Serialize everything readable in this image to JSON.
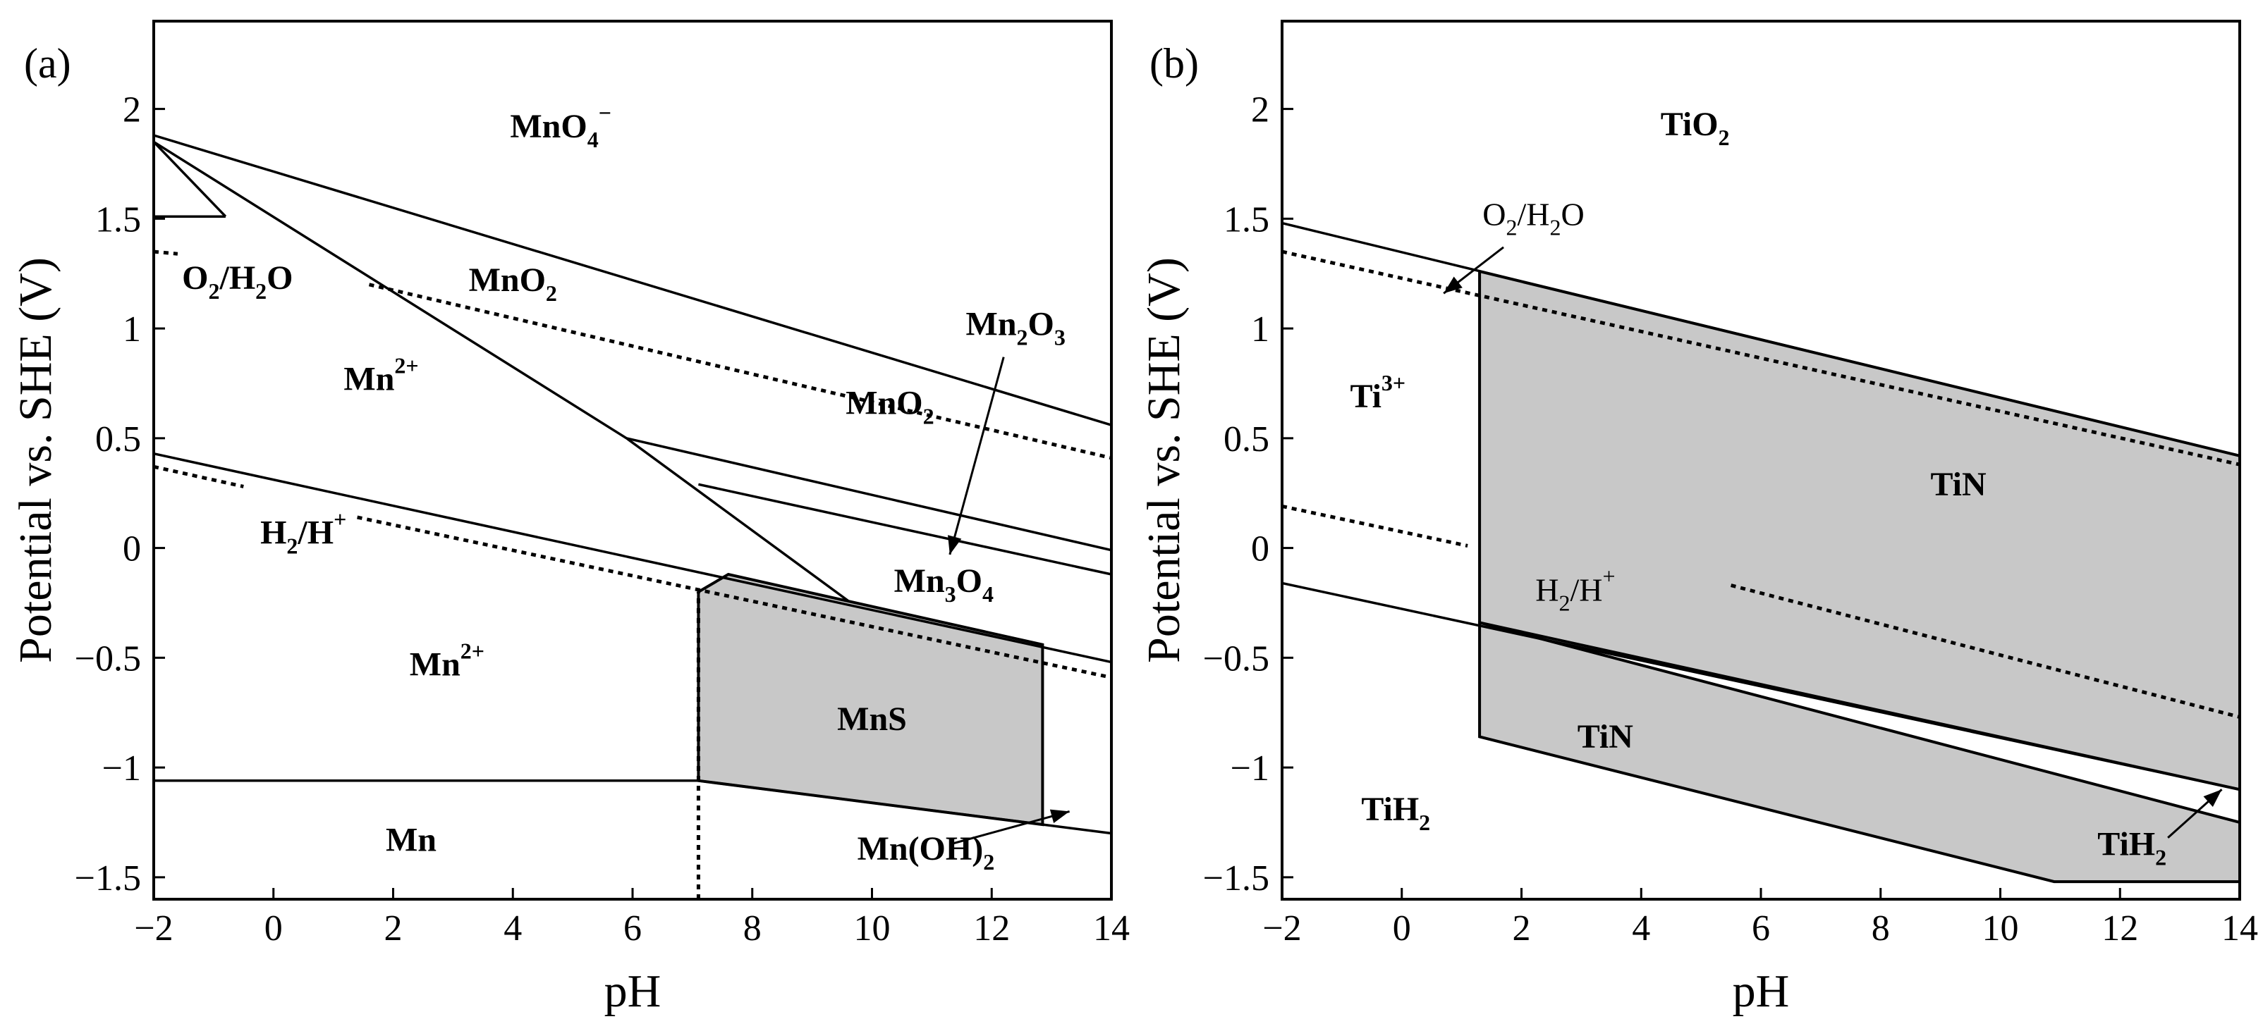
{
  "chart_data": [
    {
      "type": "line",
      "panel_label": "(a)",
      "xlabel": "pH",
      "ylabel": "Potential vs. SHE (V)",
      "xlim": [
        -2,
        14
      ],
      "ylim": [
        -1.6,
        2.4
      ],
      "xticks": [
        -2,
        0,
        2,
        4,
        6,
        8,
        10,
        12,
        14
      ],
      "yticks": [
        -1.5,
        -1,
        -0.5,
        0,
        0.5,
        1,
        1.5,
        2
      ],
      "xtick_labels": [
        "−2",
        "0",
        "2",
        "4",
        "6",
        "8",
        "10",
        "12",
        "14"
      ],
      "ytick_labels": [
        "−1.5",
        "−1",
        "−0.5",
        "0",
        "0.5",
        "1",
        "1.5",
        "2"
      ],
      "shaded_regions": [
        {
          "name": "MnS",
          "color": "#c8c8c8",
          "points": [
            [
              7.1,
              -1.06
            ],
            [
              7.1,
              -0.2
            ],
            [
              7.6,
              -0.12
            ],
            [
              12.85,
              -0.44
            ],
            [
              12.85,
              -1.26
            ]
          ]
        }
      ],
      "lines": [
        {
          "style": "solid",
          "points": [
            [
              -2,
              1.88
            ],
            [
              14,
              0.56
            ]
          ]
        },
        {
          "style": "solid",
          "points": [
            [
              -2,
              1.85
            ],
            [
              5.9,
              0.5
            ],
            [
              9.6,
              -0.24
            ]
          ]
        },
        {
          "style": "solid",
          "points": [
            [
              -2,
              1.51
            ],
            [
              -0.8,
              1.51
            ]
          ]
        },
        {
          "style": "solid",
          "points": [
            [
              -2,
              1.85
            ],
            [
              -0.8,
              1.51
            ]
          ]
        },
        {
          "style": "solid",
          "points": [
            [
              5.9,
              0.5
            ],
            [
              14,
              -0.01
            ]
          ]
        },
        {
          "style": "solid",
          "points": [
            [
              7.1,
              0.29
            ],
            [
              14,
              -0.12
            ]
          ]
        },
        {
          "style": "solid",
          "points": [
            [
              -2,
              0.43
            ],
            [
              14,
              -0.52
            ]
          ]
        },
        {
          "style": "solid",
          "points": [
            [
              -2,
              -1.06
            ],
            [
              7.1,
              -1.06
            ]
          ]
        },
        {
          "style": "solid",
          "points": [
            [
              7.1,
              -1.06
            ],
            [
              14,
              -1.3
            ]
          ]
        },
        {
          "style": "dotted",
          "points": [
            [
              1.6,
              1.2
            ],
            [
              14,
              0.41
            ]
          ]
        },
        {
          "style": "dotted",
          "points": [
            [
              -2,
              1.35
            ],
            [
              -1.6,
              1.34
            ]
          ]
        },
        {
          "style": "dotted",
          "points": [
            [
              -2,
              0.37
            ],
            [
              -0.5,
              0.28
            ]
          ]
        },
        {
          "style": "dotted",
          "points": [
            [
              1.4,
              0.14
            ],
            [
              14,
              -0.59
            ]
          ]
        },
        {
          "style": "dotted",
          "points": [
            [
              7.1,
              -1.6
            ],
            [
              7.1,
              -0.2
            ]
          ]
        }
      ],
      "labels": [
        {
          "base": "MnO",
          "sub": "4",
          "sup": "−",
          "x": 4.8,
          "y": 1.87
        },
        {
          "base": "MnO",
          "sub": "2",
          "x": 4.0,
          "y": 1.17
        },
        {
          "base": "MnO",
          "sub": "2",
          "x": 10.3,
          "y": 0.61
        },
        {
          "base": "Mn",
          "sub": "2",
          "tail": "O",
          "sub2": "3",
          "x": 12.4,
          "y": 0.97
        },
        {
          "base": "Mn",
          "sup": "2+",
          "x": 1.8,
          "y": 0.72
        },
        {
          "base": "Mn",
          "sup": "2+",
          "x": 2.9,
          "y": -0.58
        },
        {
          "base": "Mn",
          "sub": "3",
          "tail": "O",
          "sub2": "4",
          "x": 11.2,
          "y": -0.2
        },
        {
          "base": "MnS",
          "x": 10.0,
          "y": -0.83
        },
        {
          "base": "Mn",
          "x": 2.3,
          "y": -1.38
        },
        {
          "base": "Mn(OH)",
          "sub": "2",
          "x": 10.9,
          "y": -1.42
        },
        {
          "base": "O",
          "sub": "2",
          "tail": "/H",
          "sub2": "2",
          "tail2": "O",
          "x": -0.6,
          "y": 1.18
        },
        {
          "base": "H",
          "sub": "2",
          "tail": "/H",
          "sup": "+",
          "x": 0.5,
          "y": 0.02
        }
      ],
      "arrows": [
        {
          "from": [
            12.2,
            0.87
          ],
          "to": [
            11.3,
            -0.03
          ]
        },
        {
          "from": [
            11.3,
            -1.35
          ],
          "to": [
            13.3,
            -1.2
          ]
        }
      ]
    },
    {
      "type": "line",
      "panel_label": "(b)",
      "xlabel": "pH",
      "ylabel": "Potential vs. SHE (V)",
      "xlim": [
        -2,
        14
      ],
      "ylim": [
        -1.6,
        2.4
      ],
      "xticks": [
        -2,
        0,
        2,
        4,
        6,
        8,
        10,
        12,
        14
      ],
      "yticks": [
        -1.5,
        -1,
        -0.5,
        0,
        0.5,
        1,
        1.5,
        2
      ],
      "xtick_labels": [
        "−2",
        "0",
        "2",
        "4",
        "6",
        "8",
        "10",
        "12",
        "14"
      ],
      "ytick_labels": [
        "−1.5",
        "−1",
        "−0.5",
        "0",
        "0.5",
        "1",
        "1.5",
        "2"
      ],
      "shaded_regions": [
        {
          "name": "TiN",
          "color": "#c8c8c8",
          "points": [
            [
              1.3,
              1.26
            ],
            [
              14,
              0.42
            ],
            [
              14,
              -1.1
            ],
            [
              1.3,
              -0.34
            ]
          ]
        },
        {
          "name": "TiN",
          "color": "#c8c8c8",
          "points": [
            [
              1.3,
              -0.34
            ],
            [
              14,
              -1.25
            ],
            [
              14,
              -1.52
            ],
            [
              10.9,
              -1.52
            ],
            [
              1.3,
              -0.86
            ]
          ]
        }
      ],
      "lines": [
        {
          "style": "solid",
          "points": [
            [
              -2,
              1.48
            ],
            [
              14,
              0.42
            ]
          ]
        },
        {
          "style": "solid",
          "points": [
            [
              -2,
              -0.16
            ],
            [
              14,
              -1.1
            ]
          ]
        },
        {
          "style": "solid",
          "points": [
            [
              1.3,
              -0.34
            ],
            [
              14,
              -1.25
            ]
          ]
        },
        {
          "style": "solid",
          "points": [
            [
              1.3,
              1.26
            ],
            [
              1.3,
              -0.86
            ]
          ]
        },
        {
          "style": "solid",
          "points": [
            [
              1.3,
              -0.86
            ],
            [
              10.9,
              -1.52
            ],
            [
              14,
              -1.52
            ]
          ]
        },
        {
          "style": "dotted",
          "points": [
            [
              -2,
              1.35
            ],
            [
              14,
              0.38
            ]
          ]
        },
        {
          "style": "dotted",
          "points": [
            [
              -2,
              0.19
            ],
            [
              1.1,
              0.01
            ]
          ]
        },
        {
          "style": "dotted",
          "points": [
            [
              5.5,
              -0.17
            ],
            [
              14,
              -0.77
            ]
          ]
        }
      ],
      "labels": [
        {
          "base": "TiO",
          "sub": "2",
          "x": 4.9,
          "y": 1.88
        },
        {
          "base": "O",
          "sub": "2",
          "tail": "/H",
          "sub2": "2",
          "tail2": "O",
          "x": 2.2,
          "y": 1.47,
          "bold": false
        },
        {
          "base": "Ti",
          "sup": "3+",
          "x": -0.4,
          "y": 0.64
        },
        {
          "base": "TiN",
          "x": 9.3,
          "y": 0.24
        },
        {
          "base": "H",
          "sub": "2",
          "tail": "/H",
          "sup": "+",
          "x": 2.9,
          "y": -0.24,
          "bold": false
        },
        {
          "base": "TiN",
          "x": 3.4,
          "y": -0.91
        },
        {
          "base": "TiH",
          "sub": "2",
          "x": -0.1,
          "y": -1.24
        },
        {
          "base": "TiH",
          "sub": "2",
          "x": 12.2,
          "y": -1.4
        }
      ],
      "arrows": [
        {
          "from": [
            1.7,
            1.37
          ],
          "to": [
            0.7,
            1.16
          ]
        },
        {
          "from": [
            12.8,
            -1.32
          ],
          "to": [
            13.7,
            -1.1
          ]
        }
      ]
    }
  ]
}
